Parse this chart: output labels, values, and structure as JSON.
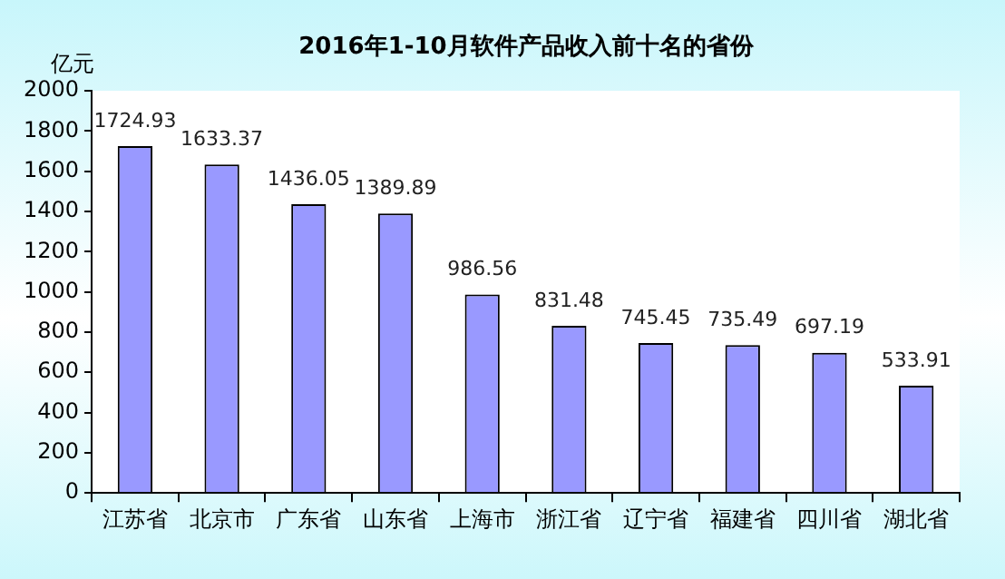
{
  "chart_data": {
    "type": "bar",
    "title": "2016年1-10月软件产品收入前十名的省份",
    "ylabel": "亿元",
    "categories": [
      "江苏省",
      "北京市",
      "广东省",
      "山东省",
      "上海市",
      "浙江省",
      "辽宁省",
      "福建省",
      "四川省",
      "湖北省"
    ],
    "values": [
      1724.93,
      1633.37,
      1436.05,
      1389.89,
      986.56,
      831.48,
      745.45,
      735.49,
      697.19,
      533.91
    ],
    "color": "#9999ff",
    "ylim": [
      0,
      2000
    ],
    "yticks": [
      0,
      200,
      400,
      600,
      800,
      1000,
      1200,
      1400,
      1600,
      1800,
      2000
    ],
    "grid": false,
    "legend": false,
    "data_labels": true
  }
}
